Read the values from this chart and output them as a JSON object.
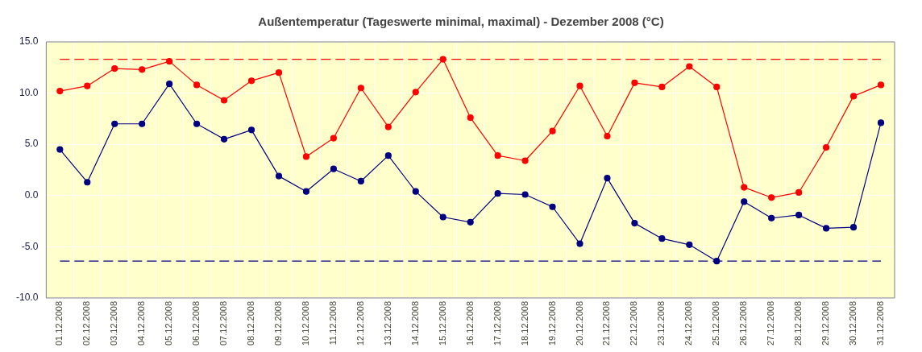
{
  "chart_data": {
    "type": "line",
    "title": "Außentemperatur (Tageswerte minimal, maximal) - Dezember 2008 (°C)",
    "categories": [
      "01.12.2008",
      "02.12.2008",
      "03.12.2008",
      "04.12.2008",
      "05.12.2008",
      "06.12.2008",
      "07.12.2008",
      "08.12.2008",
      "09.12.2008",
      "10.12.2008",
      "11.12.2008",
      "12.12.2008",
      "13.12.2008",
      "14.12.2008",
      "15.12.2008",
      "16.12.2008",
      "17.12.2008",
      "18.12.2008",
      "19.12.2008",
      "20.12.2008",
      "21.12.2008",
      "22.12.2008",
      "23.12.2008",
      "24.12.2008",
      "25.12.2008",
      "26.12.2008",
      "27.12.2008",
      "28.12.2008",
      "29.12.2008",
      "30.12.2008",
      "31.12.2008"
    ],
    "series": [
      {
        "color": "#000080",
        "values": [
          4.5,
          1.3,
          7.0,
          7.0,
          10.9,
          7.0,
          5.5,
          6.4,
          1.9,
          0.4,
          2.6,
          1.4,
          3.9,
          0.4,
          -2.1,
          -2.6,
          0.2,
          0.1,
          -1.1,
          -4.7,
          1.7,
          -2.7,
          -4.2,
          -4.8,
          -6.4,
          -0.6,
          -2.2,
          -1.9,
          -3.2,
          -3.1,
          7.1
        ]
      },
      {
        "color": "#ff0000",
        "values": [
          10.2,
          10.7,
          12.4,
          12.3,
          13.1,
          10.8,
          9.3,
          11.2,
          12.0,
          3.8,
          5.6,
          10.5,
          6.7,
          10.1,
          13.3,
          7.6,
          3.9,
          3.4,
          6.3,
          10.7,
          5.8,
          11.0,
          10.6,
          12.6,
          10.6,
          0.8,
          -0.2,
          0.3,
          4.7,
          9.7,
          10.8
        ]
      }
    ],
    "ref_lines": [
      {
        "axis": "y",
        "value": 13.3,
        "color": "#ff0000",
        "line_style": "dashed"
      },
      {
        "axis": "y",
        "value": -6.4,
        "color": "#000080",
        "line_style": "dashed"
      }
    ],
    "ylim": [
      -10,
      15
    ],
    "yticks": [
      {
        "value": -10,
        "label": "-10.0"
      },
      {
        "value": -5,
        "label": "-5.0"
      },
      {
        "value": 0,
        "label": "0.0"
      },
      {
        "value": 5,
        "label": "5.0"
      },
      {
        "value": 10,
        "label": "10.0"
      },
      {
        "value": 15,
        "label": "15.0"
      }
    ],
    "grid": true,
    "legend": false,
    "marker": "circle",
    "line_style": "solid"
  }
}
